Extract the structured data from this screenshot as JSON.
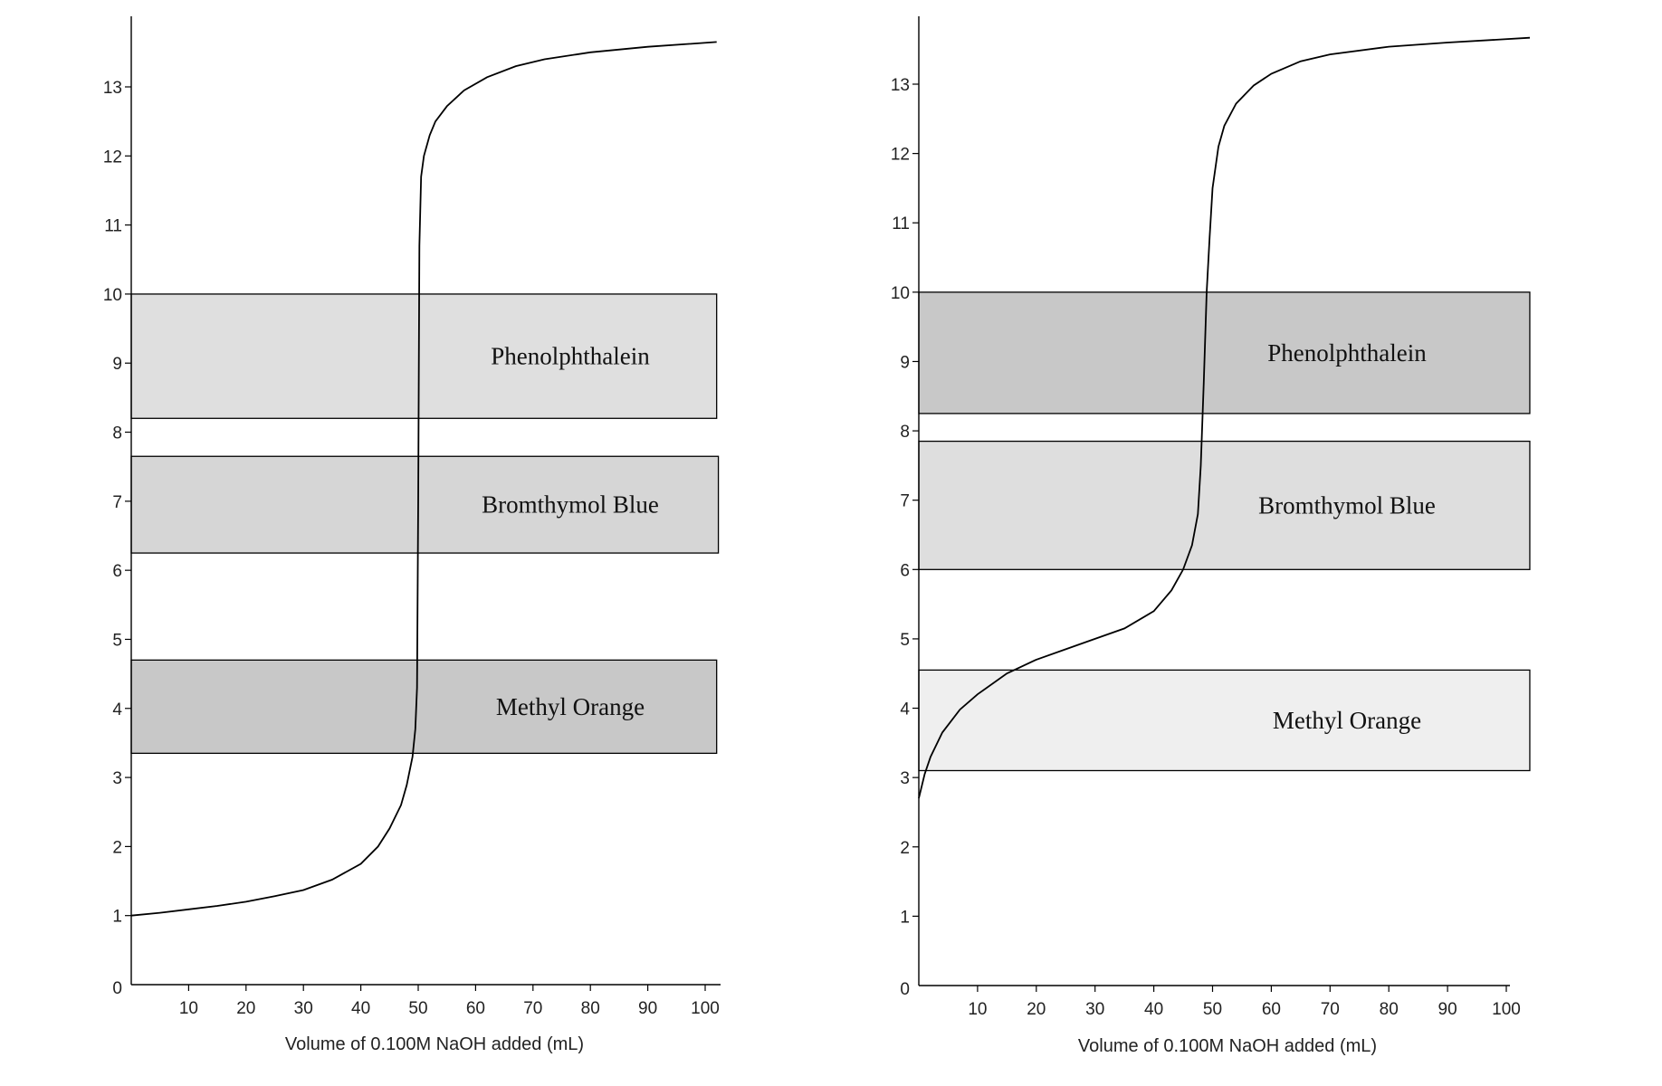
{
  "chart_data": [
    {
      "type": "line",
      "xlabel": "Volume of 0.100M NaOH added (mL)",
      "ylabel": "",
      "xlim": [
        0,
        100
      ],
      "ylim": [
        0,
        14
      ],
      "xticks": [
        10,
        20,
        30,
        40,
        50,
        60,
        70,
        80,
        90,
        100
      ],
      "yticks": [
        0,
        1,
        2,
        3,
        4,
        5,
        6,
        7,
        8,
        9,
        10,
        11,
        12,
        13
      ],
      "grid": false,
      "legend": "none",
      "series": [
        {
          "x": [
            0,
            5,
            10,
            15,
            20,
            25,
            30,
            35,
            40,
            43,
            45,
            47,
            48,
            49,
            49.5,
            49.8,
            50,
            50.2,
            50.5,
            51,
            52,
            53,
            55,
            58,
            62,
            67,
            72,
            80,
            90,
            102
          ],
          "y": [
            1.0,
            1.04,
            1.09,
            1.14,
            1.2,
            1.28,
            1.37,
            1.52,
            1.75,
            2.0,
            2.26,
            2.6,
            2.89,
            3.3,
            3.7,
            4.3,
            7.0,
            10.7,
            11.7,
            12.0,
            12.3,
            12.5,
            12.72,
            12.95,
            13.14,
            13.3,
            13.4,
            13.5,
            13.58,
            13.65
          ]
        }
      ],
      "bands": [
        {
          "label": "Phenolphthalein",
          "y_low": 8.2,
          "y_high": 10.0,
          "x_end": 102,
          "color": "#dfdfdf"
        },
        {
          "label": "Bromthymol Blue",
          "y_low": 6.25,
          "y_high": 7.65,
          "x_end": 102.3,
          "color": "#d6d6d6"
        },
        {
          "label": "Methyl Orange",
          "y_low": 3.35,
          "y_high": 4.7,
          "x_end": 102,
          "color": "#c8c8c8"
        }
      ]
    },
    {
      "type": "line",
      "xlabel": "Volume of 0.100M NaOH added (mL)",
      "ylabel": "",
      "xlim": [
        0,
        100
      ],
      "ylim": [
        0,
        14
      ],
      "xticks": [
        10,
        20,
        30,
        40,
        50,
        60,
        70,
        80,
        90,
        100
      ],
      "yticks": [
        0,
        1,
        2,
        3,
        4,
        5,
        6,
        7,
        8,
        9,
        10,
        11,
        12,
        13
      ],
      "grid": false,
      "legend": "none",
      "series": [
        {
          "x": [
            0,
            1,
            2,
            4,
            7,
            10,
            15,
            20,
            25,
            30,
            35,
            40,
            43,
            45,
            46.5,
            47.5,
            48,
            48.5,
            49,
            49.5,
            50,
            51,
            52,
            54,
            57,
            60,
            65,
            70,
            80,
            90,
            104
          ],
          "y": [
            2.7,
            3.05,
            3.3,
            3.65,
            3.98,
            4.2,
            4.5,
            4.7,
            4.85,
            5.0,
            5.15,
            5.4,
            5.7,
            6.0,
            6.35,
            6.8,
            7.5,
            8.7,
            10.0,
            10.8,
            11.5,
            12.1,
            12.4,
            12.72,
            12.98,
            13.15,
            13.33,
            13.43,
            13.54,
            13.6,
            13.67
          ]
        }
      ],
      "bands": [
        {
          "label": "Phenolphthalein",
          "y_low": 8.25,
          "y_high": 10.0,
          "x_end": 104,
          "color": "#c8c8c8"
        },
        {
          "label": "Bromthymol Blue",
          "y_low": 6.0,
          "y_high": 7.85,
          "x_end": 104,
          "color": "#dedede"
        },
        {
          "label": "Methyl Orange",
          "y_low": 3.1,
          "y_high": 4.55,
          "x_end": 104,
          "color": "#efefef"
        }
      ]
    }
  ]
}
